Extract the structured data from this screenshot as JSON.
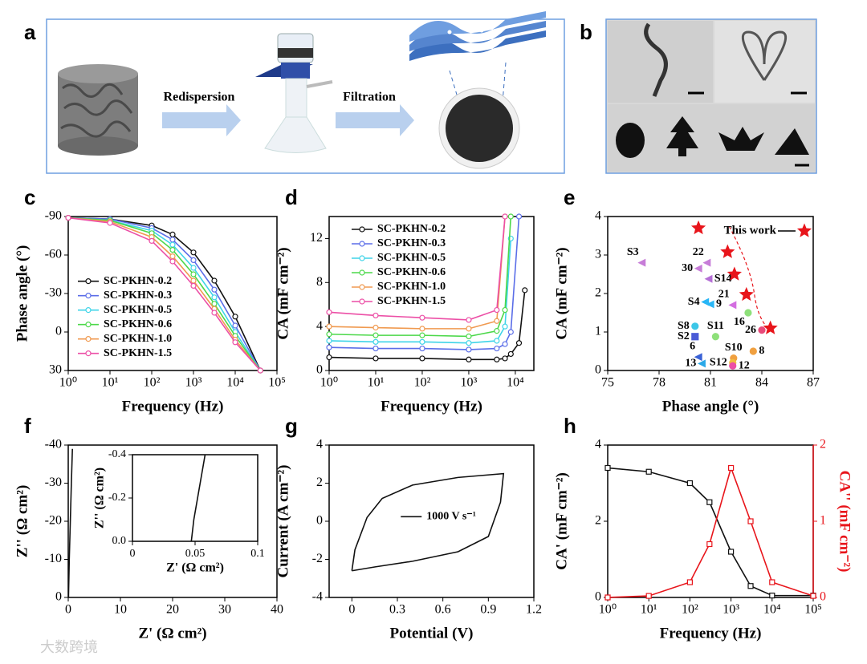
{
  "panels": {
    "a": {
      "label": "a",
      "steps": [
        "Redispersion",
        "Filtration"
      ]
    },
    "b": {
      "label": "b"
    },
    "watermark": "大数跨境"
  },
  "chart_data": [
    {
      "panel": "c",
      "type": "line",
      "xscale": "log",
      "marker": "circle",
      "legend": "center-left",
      "xlabel": "Frequency (Hz)",
      "ylabel": "Phase angle (°)",
      "xlim": [
        1,
        100000
      ],
      "xticks": [
        {
          "value": 1,
          "label": "10⁰"
        },
        {
          "value": 10,
          "label": "10¹"
        },
        {
          "value": 100,
          "label": "10²"
        },
        {
          "value": 1000,
          "label": "10³"
        },
        {
          "value": 10000,
          "label": "10⁴"
        },
        {
          "value": 100000,
          "label": "10⁵"
        }
      ],
      "ylim": [
        30,
        -90
      ],
      "yticks": [
        -90,
        -60,
        -30,
        0,
        30
      ],
      "x": [
        1,
        10,
        100,
        316,
        1000,
        3162,
        10000,
        40000
      ],
      "series": [
        {
          "name": "SC-PKHN-0.2",
          "color": "#111111",
          "values": [
            -89,
            -88,
            -83,
            -76,
            -62,
            -40,
            -12,
            30
          ]
        },
        {
          "name": "SC-PKHN-0.3",
          "color": "#5b6ee8",
          "values": [
            -89,
            -88,
            -81,
            -72,
            -56,
            -33,
            -5,
            30
          ]
        },
        {
          "name": "SC-PKHN-0.5",
          "color": "#3fd4e8",
          "values": [
            -89,
            -87,
            -79,
            -68,
            -50,
            -27,
            0,
            30
          ]
        },
        {
          "name": "SC-PKHN-0.6",
          "color": "#4cd84a",
          "values": [
            -89,
            -87,
            -77,
            -64,
            -45,
            -22,
            3,
            30
          ]
        },
        {
          "name": "SC-PKHN-1.0",
          "color": "#f09a50",
          "values": [
            -89,
            -86,
            -74,
            -59,
            -40,
            -18,
            6,
            30
          ]
        },
        {
          "name": "SC-PKHN-1.5",
          "color": "#ec4fa6",
          "values": [
            -89,
            -85,
            -71,
            -55,
            -36,
            -15,
            8,
            30
          ]
        }
      ]
    },
    {
      "panel": "d",
      "type": "line",
      "xscale": "log",
      "marker": "circle",
      "legend": "upper-left",
      "xlabel": "Frequency (Hz)",
      "ylabel": "CA (mF cm⁻²)",
      "xlim": [
        1,
        25000
      ],
      "xticks": [
        {
          "value": 1,
          "label": "10⁰"
        },
        {
          "value": 10,
          "label": "10¹"
        },
        {
          "value": 100,
          "label": "10²"
        },
        {
          "value": 1000,
          "label": "10³"
        },
        {
          "value": 10000,
          "label": "10⁴"
        }
      ],
      "ylim": [
        0,
        14
      ],
      "yticks": [
        0,
        4,
        8,
        12
      ],
      "x": [
        1,
        10,
        100,
        1000,
        4000,
        6000,
        8000,
        12000,
        16000
      ],
      "series": [
        {
          "name": "SC-PKHN-0.2",
          "color": "#111111",
          "values": [
            1.2,
            1.1,
            1.1,
            1.0,
            1.0,
            1.1,
            1.5,
            2.5,
            7.3
          ]
        },
        {
          "name": "SC-PKHN-0.3",
          "color": "#5b6ee8",
          "values": [
            2.1,
            2.0,
            2.0,
            1.9,
            2.0,
            2.4,
            3.5,
            14,
            null
          ]
        },
        {
          "name": "SC-PKHN-0.5",
          "color": "#3fd4e8",
          "values": [
            2.7,
            2.6,
            2.6,
            2.5,
            2.7,
            4.0,
            12,
            null,
            null
          ]
        },
        {
          "name": "SC-PKHN-0.6",
          "color": "#4cd84a",
          "values": [
            3.3,
            3.2,
            3.2,
            3.1,
            3.6,
            5.5,
            14,
            null,
            null
          ]
        },
        {
          "name": "SC-PKHN-1.0",
          "color": "#f09a50",
          "values": [
            4.0,
            3.9,
            3.8,
            3.8,
            4.5,
            14,
            null,
            null,
            null
          ]
        },
        {
          "name": "SC-PKHN-1.5",
          "color": "#ec4fa6",
          "values": [
            5.3,
            5.0,
            4.8,
            4.6,
            5.5,
            14,
            null,
            null,
            null
          ]
        }
      ]
    },
    {
      "panel": "e",
      "type": "scatter",
      "xlabel": "Phase angle (°)",
      "ylabel": "CA (mF cm⁻²)",
      "xlim": [
        75,
        87
      ],
      "xticks": [
        75,
        78,
        81,
        84,
        87
      ],
      "ylim": [
        0,
        4
      ],
      "yticks": [
        0,
        1,
        2,
        3,
        4
      ],
      "points": [
        {
          "label": "S3",
          "x": 77.0,
          "y": 2.8,
          "color": "#c77dd8",
          "marker": "triangle"
        },
        {
          "label": "22",
          "x": 80.8,
          "y": 2.8,
          "color": "#c77dd8",
          "marker": "triangle"
        },
        {
          "label": "30",
          "x": 80.3,
          "y": 2.65,
          "color": "#c77dd8",
          "marker": "triangle"
        },
        {
          "label": "S14",
          "x": 80.9,
          "y": 2.38,
          "color": "#b56fd6",
          "marker": "triangle"
        },
        {
          "label": "S4",
          "x": 80.7,
          "y": 1.78,
          "color": "#29b6f6",
          "marker": "triangle"
        },
        {
          "label": "9",
          "x": 81.0,
          "y": 1.72,
          "color": "#29b6f6",
          "marker": "triangle"
        },
        {
          "label": "21",
          "x": 82.3,
          "y": 1.7,
          "color": "#d36ee0",
          "marker": "triangle"
        },
        {
          "label": "16",
          "x": 83.2,
          "y": 1.5,
          "color": "#8ee07a",
          "marker": "circle"
        },
        {
          "label": "S8",
          "x": 80.1,
          "y": 1.15,
          "color": "#3cc7e8",
          "marker": "circle"
        },
        {
          "label": "S2",
          "x": 80.1,
          "y": 0.88,
          "color": "#4a5bd6",
          "marker": "square"
        },
        {
          "label": "S11",
          "x": 81.3,
          "y": 0.88,
          "color": "#8ee07a",
          "marker": "circle"
        },
        {
          "label": "26",
          "x": 84.0,
          "y": 1.05,
          "color": "#e84a7a",
          "marker": "circle"
        },
        {
          "label": "S10",
          "x": 82.35,
          "y": 0.32,
          "color": "#f0a040",
          "marker": "circle"
        },
        {
          "label": "S12",
          "x": 82.3,
          "y": 0.2,
          "color": "#f0c040",
          "marker": "circle"
        },
        {
          "label": "12",
          "x": 82.3,
          "y": 0.12,
          "color": "#ec4fa6",
          "marker": "circle"
        },
        {
          "label": "6",
          "x": 80.3,
          "y": 0.35,
          "color": "#3a62d6",
          "marker": "triangle"
        },
        {
          "label": "13",
          "x": 80.5,
          "y": 0.18,
          "color": "#2aa8e8",
          "marker": "triangle"
        },
        {
          "label": "8",
          "x": 83.5,
          "y": 0.5,
          "color": "#f0a040",
          "marker": "circle"
        }
      ],
      "this_work": {
        "name": "This work",
        "color": "#e8151b",
        "x": [
          80.3,
          82.0,
          82.4,
          83.1,
          84.5
        ],
        "values": [
          3.7,
          3.08,
          2.5,
          1.97,
          1.1
        ]
      }
    },
    {
      "panel": "f",
      "type": "line",
      "xlabel": "Z' (Ω cm²)",
      "ylabel": "Z'' (Ω cm²)",
      "xlim": [
        0,
        40
      ],
      "xticks": [
        0,
        10,
        20,
        30,
        40
      ],
      "ylim": [
        0,
        -40
      ],
      "yticks": [
        0,
        -10,
        -20,
        -30,
        -40
      ],
      "x": [
        0.05,
        0.2,
        0.4,
        0.6,
        0.8
      ],
      "series": [
        {
          "color": "#111111",
          "values": [
            0,
            -10,
            -20,
            -30,
            -39
          ]
        }
      ],
      "inset": {
        "xlabel": "Z' (Ω cm²)",
        "ylabel": "Z'' (Ω cm²)",
        "xlim": [
          0,
          0.1
        ],
        "xticks": [
          0,
          0.05,
          0.1
        ],
        "ylim": [
          0,
          -0.4
        ],
        "yticks": [
          {
            "value": 0,
            "label": "0.0"
          },
          -0.2,
          -0.4
        ],
        "x": [
          0.047,
          0.049,
          0.052,
          0.055,
          0.058
        ],
        "series": [
          {
            "color": "#111111",
            "values": [
              0,
              -0.1,
              -0.2,
              -0.3,
              -0.4
            ]
          }
        ]
      }
    },
    {
      "panel": "g",
      "type": "line",
      "legend": "center",
      "xlabel": "Potential (V)",
      "ylabel": "Current (A cm⁻²)",
      "xlim": [
        -0.15,
        1.2
      ],
      "xticks": [
        0,
        0.3,
        0.6,
        0.9,
        1.2
      ],
      "ylim": [
        -4,
        4
      ],
      "yticks": [
        -4,
        -2,
        0,
        2,
        4
      ],
      "x": [
        0,
        0.02,
        0.1,
        0.2,
        0.4,
        0.7,
        1.0,
        0.98,
        0.9,
        0.7,
        0.4,
        0.15,
        0
      ],
      "series": [
        {
          "name": "1000 V s⁻¹",
          "color": "#111111",
          "values": [
            -2.6,
            -1.5,
            0.2,
            1.2,
            1.9,
            2.3,
            2.5,
            1.0,
            -0.8,
            -1.6,
            -2.1,
            -2.4,
            -2.6
          ]
        }
      ]
    },
    {
      "panel": "h",
      "type": "line",
      "xscale": "log",
      "marker": "square",
      "xlabel": "Frequency (Hz)",
      "ylabel": "CA' (mF cm⁻²)",
      "y2label": "CA'' (mF cm⁻²)",
      "xlim": [
        1,
        100000
      ],
      "xticks": [
        {
          "value": 1,
          "label": "10⁰"
        },
        {
          "value": 10,
          "label": "10¹"
        },
        {
          "value": 100,
          "label": "10²"
        },
        {
          "value": 1000,
          "label": "10³"
        },
        {
          "value": 10000,
          "label": "10⁴"
        },
        {
          "value": 100000,
          "label": "10⁵"
        }
      ],
      "ylim": [
        0,
        4
      ],
      "yticks": [
        0,
        2,
        4
      ],
      "y2lim": [
        0,
        2
      ],
      "y2ticks": [
        0,
        1,
        2
      ],
      "x": [
        1,
        10,
        100,
        300,
        1000,
        3000,
        10000,
        100000
      ],
      "series": [
        {
          "color": "#111111",
          "values": [
            3.4,
            3.3,
            3.0,
            2.5,
            1.2,
            0.3,
            0.05,
            0.05
          ]
        },
        {
          "color": "#e8151b",
          "axis": "y2",
          "values": [
            0,
            0.02,
            0.2,
            0.7,
            1.7,
            1.0,
            0.2,
            0.02
          ]
        }
      ]
    }
  ]
}
